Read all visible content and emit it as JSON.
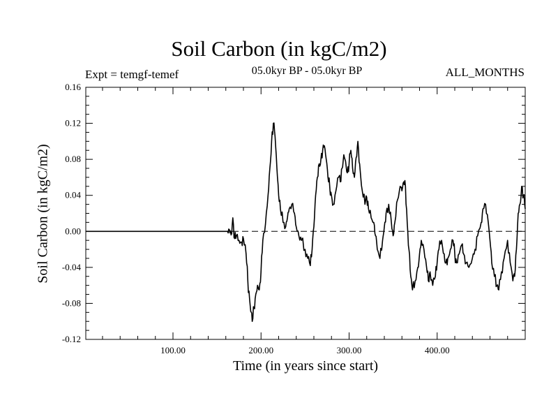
{
  "chart_data": {
    "type": "line",
    "title": "Soil Carbon (in kgC/m2)",
    "subtitle_left": "Expt = temgf-temef",
    "subtitle_center": "05.0kyr BP - 05.0kyr BP",
    "subtitle_right": "ALL_MONTHS",
    "xlabel": "Time (in years since start)",
    "ylabel": "Soil Carbon (in kgC/m2)",
    "xlim": [
      1,
      500
    ],
    "ylim": [
      -0.12,
      0.16
    ],
    "x_ticks": [
      100,
      200,
      300,
      400
    ],
    "x_tick_labels": [
      "100.00",
      "200.00",
      "300.00",
      "400.00"
    ],
    "y_ticks": [
      -0.12,
      -0.08,
      -0.04,
      0.0,
      0.04,
      0.08,
      0.12,
      0.16
    ],
    "y_tick_labels": [
      "-0.12",
      "-0.08",
      "-0.04",
      "0.00",
      "0.04",
      "0.08",
      "0.12",
      "0.16"
    ],
    "reference_line": {
      "y": 0.0,
      "style": "dashed"
    },
    "series": [
      {
        "name": "Soil Carbon",
        "x": [
          1,
          162,
          164,
          166,
          168,
          170,
          172,
          175,
          178,
          180,
          183,
          185,
          187,
          189,
          190,
          192,
          194,
          196,
          198,
          200,
          202,
          205,
          208,
          210,
          212,
          214,
          216,
          218,
          220,
          222,
          225,
          228,
          230,
          232,
          235,
          238,
          240,
          243,
          246,
          250,
          253,
          256,
          258,
          260,
          262,
          264,
          266,
          268,
          270,
          272,
          274,
          276,
          278,
          280,
          282,
          285,
          288,
          290,
          292,
          294,
          296,
          298,
          300,
          302,
          304,
          306,
          308,
          310,
          312,
          315,
          318,
          320,
          322,
          325,
          328,
          330,
          332,
          335,
          338,
          340,
          342,
          345,
          348,
          350,
          352,
          355,
          358,
          360,
          362,
          364,
          366,
          368,
          370,
          372,
          375,
          378,
          380,
          382,
          385,
          388,
          390,
          392,
          395,
          398,
          400,
          402,
          405,
          408,
          410,
          412,
          415,
          418,
          420,
          422,
          425,
          428,
          430,
          433,
          436,
          440,
          443,
          446,
          450,
          452,
          455,
          458,
          460,
          462,
          465,
          468,
          470,
          473,
          476,
          480,
          483,
          486,
          488,
          490,
          492,
          494,
          496,
          498,
          500
        ],
        "values": [
          0.0,
          0.0,
          0.002,
          -0.004,
          0.015,
          -0.008,
          -0.005,
          -0.01,
          -0.012,
          -0.008,
          -0.025,
          -0.055,
          -0.075,
          -0.09,
          -0.1,
          -0.085,
          -0.07,
          -0.06,
          -0.065,
          -0.045,
          -0.01,
          0.008,
          0.04,
          0.07,
          0.1,
          0.12,
          0.105,
          0.07,
          0.04,
          0.025,
          0.01,
          0.005,
          0.015,
          0.025,
          0.03,
          0.02,
          0.005,
          -0.005,
          -0.01,
          -0.02,
          -0.03,
          -0.038,
          -0.02,
          0.005,
          0.04,
          0.06,
          0.075,
          0.08,
          0.09,
          0.095,
          0.08,
          0.06,
          0.05,
          0.04,
          0.03,
          0.045,
          0.06,
          0.055,
          0.07,
          0.085,
          0.078,
          0.065,
          0.075,
          0.09,
          0.07,
          0.06,
          0.082,
          0.1,
          0.075,
          0.045,
          0.03,
          0.038,
          0.025,
          0.015,
          0.01,
          -0.005,
          -0.02,
          -0.03,
          -0.01,
          0.005,
          0.02,
          0.03,
          0.01,
          -0.005,
          0.01,
          0.035,
          0.05,
          0.045,
          0.055,
          0.05,
          0.01,
          -0.02,
          -0.05,
          -0.065,
          -0.055,
          -0.04,
          -0.025,
          -0.01,
          -0.02,
          -0.04,
          -0.055,
          -0.045,
          -0.06,
          -0.05,
          -0.035,
          -0.02,
          -0.01,
          -0.025,
          -0.035,
          -0.03,
          -0.02,
          -0.01,
          -0.025,
          -0.035,
          -0.025,
          -0.015,
          -0.025,
          -0.035,
          -0.04,
          -0.03,
          -0.02,
          -0.005,
          0.01,
          0.025,
          0.03,
          0.01,
          -0.01,
          -0.035,
          -0.05,
          -0.06,
          -0.065,
          -0.045,
          -0.03,
          -0.01,
          -0.035,
          -0.055,
          -0.05,
          -0.02,
          0.02,
          0.03,
          0.05,
          0.04,
          0.025
        ]
      }
    ]
  }
}
